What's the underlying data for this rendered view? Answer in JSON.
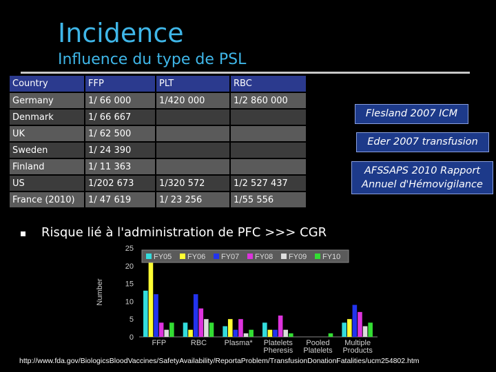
{
  "slide": {
    "title": "Incidence",
    "subtitle": "Influence du type de PSL",
    "bullet": "Risque lié à l'administration de PFC >>> CGR",
    "source_url": "http://www.fda.gov/BiologicsBloodVaccines/SafetyAvailability/ReportaProblem/TransfusionDonationFatalities/ucm254802.htm"
  },
  "table": {
    "headers": [
      "Country",
      "FFP",
      "PLT",
      "RBC"
    ],
    "rows": [
      [
        "Germany",
        "1/ 66 000",
        "1/420 000",
        "1/2 860 000"
      ],
      [
        "Denmark",
        "1/ 66 667",
        "",
        ""
      ],
      [
        "UK",
        "1/ 62 500",
        "",
        ""
      ],
      [
        "Sweden",
        "1/ 24 390",
        "",
        ""
      ],
      [
        "Finland",
        "1/ 11 363",
        "",
        ""
      ],
      [
        "US",
        "1/202 673",
        "1/320 572",
        "1/2 527 437"
      ],
      [
        "France (2010)",
        "1/ 47 619",
        "1/ 23 256",
        "1/55 556"
      ]
    ]
  },
  "references": [
    "Flesland 2007 ICM",
    "Eder 2007 transfusion",
    "AFSSAPS 2010 Rapport Annuel d'Hémovigilance"
  ],
  "chart_data": {
    "type": "bar",
    "ylabel": "Number",
    "ylim": [
      0,
      25
    ],
    "yticks": [
      0,
      5,
      10,
      15,
      20,
      25
    ],
    "categories": [
      "FFP",
      "RBC",
      "Plasma*",
      "Platelets Pheresis",
      "Pooled Platelets",
      "Multiple Products"
    ],
    "series": [
      {
        "name": "FY05",
        "color": "#33dddd",
        "values": [
          13,
          4,
          3,
          4,
          0,
          4
        ]
      },
      {
        "name": "FY06",
        "color": "#ffff33",
        "values": [
          22,
          2,
          5,
          2,
          0,
          5
        ]
      },
      {
        "name": "FY07",
        "color": "#2233ee",
        "values": [
          12,
          12,
          2,
          2,
          0,
          9
        ]
      },
      {
        "name": "FY08",
        "color": "#dd33dd",
        "values": [
          4,
          8,
          5,
          6,
          0,
          7
        ]
      },
      {
        "name": "FY09",
        "color": "#dddddd",
        "values": [
          2,
          5,
          1,
          2,
          0,
          3
        ]
      },
      {
        "name": "FY10",
        "color": "#33dd33",
        "values": [
          4,
          4,
          2,
          1,
          1,
          4
        ]
      }
    ]
  },
  "colors": {
    "accent": "#3fb6e8",
    "table_header": "#2b3a8e",
    "ref_box": "#1d3a8a"
  }
}
